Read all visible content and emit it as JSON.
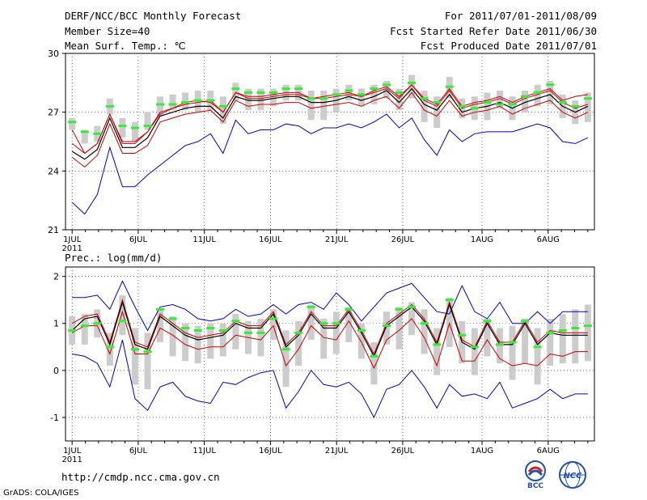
{
  "header": {
    "title": "DERF/NCC/BCC Monthly Forecast",
    "member_size": "Member Size=40",
    "variable": "Mean Surf. Temp.: ℃",
    "period": "For 2011/07/01-2011/08/09",
    "start_date": "Fcst Started Refer Date 2011/06/30",
    "produced_date": "Fcst Produced Date 2011/07/01"
  },
  "footer": {
    "url": "http://cmdp.ncc.cma.gov.cn",
    "grads": "GrADS: COLA/IGES",
    "logo_left": "BCC",
    "logo_right": "NCC"
  },
  "colors": {
    "max_min": "#0000cc",
    "spread": "#cc0000",
    "mean": "#000000",
    "median": "#33ee33",
    "box": "#cccccc",
    "grid": "#555555"
  },
  "chart_data": [
    {
      "type": "line",
      "title": "Mean Surf. Temp.: ℃",
      "x_labels": [
        "1JUL",
        "6JUL",
        "11JUL",
        "16JUL",
        "21JUL",
        "26JUL",
        "1AUG",
        "6AUG"
      ],
      "x_label_days": [
        1,
        6,
        11,
        16,
        21,
        26,
        32,
        37
      ],
      "year_label": "2011",
      "xlim": [
        0.5,
        40.5
      ],
      "ylim": [
        21,
        30
      ],
      "yticks": [
        21,
        24,
        27,
        30
      ],
      "series": [
        {
          "name": "max",
          "values": [
            22.4,
            21.8,
            22.8,
            25.2,
            23.2,
            23.2,
            23.8,
            24.3,
            24.8,
            25.3,
            25.5,
            25.9,
            24.9,
            26.6,
            25.9,
            26.1,
            26.1,
            26.4,
            26.3,
            25.9,
            26.2,
            26.2,
            26.4,
            26.2,
            26.5,
            26.9,
            26.2,
            26.7,
            25.6,
            24.8,
            26.1,
            25.5,
            25.9,
            26.0,
            26.0,
            26.0,
            26.2,
            26.4,
            26.2,
            25.5,
            25.4,
            25.7
          ]
        },
        {
          "name": "spread_upper",
          "values": [
            25.4,
            24.9,
            25.4,
            26.9,
            25.5,
            25.5,
            26.0,
            26.9,
            27.2,
            27.5,
            27.6,
            27.5,
            27.0,
            28.0,
            27.7,
            27.7,
            27.8,
            27.9,
            27.9,
            27.7,
            27.7,
            27.8,
            27.9,
            27.8,
            28.0,
            28.2,
            27.7,
            28.4,
            27.6,
            27.3,
            28.1,
            27.2,
            27.4,
            27.5,
            27.7,
            27.4,
            27.7,
            27.9,
            28.1,
            27.5,
            27.2,
            27.4
          ]
        },
        {
          "name": "median_line",
          "values": [
            26.1,
            24.9,
            25.4,
            26.9,
            25.4,
            25.4,
            26.0,
            27.0,
            27.2,
            27.4,
            27.5,
            27.6,
            27.0,
            28.0,
            27.8,
            27.8,
            27.9,
            28.0,
            28.0,
            27.7,
            27.8,
            27.9,
            28.0,
            27.8,
            28.1,
            28.3,
            27.8,
            28.4,
            27.7,
            27.4,
            28.2,
            27.3,
            27.5,
            27.6,
            27.8,
            27.5,
            27.8,
            28.0,
            28.2,
            27.6,
            27.8,
            27.9
          ]
        },
        {
          "name": "mean",
          "values": [
            25.0,
            24.6,
            25.1,
            26.7,
            25.2,
            25.2,
            25.7,
            26.8,
            27.0,
            27.2,
            27.3,
            27.3,
            26.7,
            27.8,
            27.6,
            27.6,
            27.7,
            27.8,
            27.8,
            27.5,
            27.5,
            27.6,
            27.8,
            27.6,
            27.8,
            28.1,
            27.5,
            28.2,
            27.4,
            27.1,
            27.9,
            27.0,
            27.2,
            27.3,
            27.5,
            27.2,
            27.5,
            27.7,
            27.9,
            27.3,
            27.0,
            27.3
          ]
        },
        {
          "name": "spread_lower",
          "values": [
            24.7,
            24.2,
            24.8,
            26.4,
            24.9,
            24.9,
            25.3,
            26.5,
            26.7,
            26.9,
            27.0,
            27.1,
            26.5,
            27.6,
            27.3,
            27.4,
            27.4,
            27.5,
            27.5,
            27.2,
            27.3,
            27.4,
            27.5,
            27.3,
            27.6,
            27.8,
            27.2,
            28.0,
            27.1,
            26.8,
            27.6,
            26.8,
            27.0,
            27.1,
            27.3,
            26.9,
            27.2,
            27.4,
            27.6,
            27.0,
            26.7,
            27.0
          ]
        },
        {
          "name": "ens_max",
          "values": [
            27.0,
            26.2,
            26.9,
            27.9,
            26.9,
            27.0,
            27.7,
            28.3,
            28.4,
            28.6,
            28.6,
            28.3,
            28.3,
            28.9,
            28.3,
            28.3,
            28.3,
            28.5,
            28.6,
            28.3,
            28.3,
            28.3,
            28.6,
            28.3,
            28.4,
            28.7,
            28.3,
            28.9,
            28.3,
            28.0,
            29.0,
            28.1,
            28.3,
            28.6,
            28.7,
            28.3,
            28.6,
            28.7,
            28.8,
            28.3,
            28.1,
            28.4
          ]
        },
        {
          "name": "ens_min_env",
          "values": [
            26.8,
            26.1,
            26.6,
            27.8,
            26.8,
            26.8,
            27.4,
            28.3,
            28.4,
            28.6,
            28.6,
            28.4,
            28.4,
            28.9,
            28.4,
            28.4,
            28.4,
            28.6,
            28.6,
            28.3,
            28.3,
            28.4,
            28.6,
            28.4,
            28.5,
            28.8,
            28.3,
            29.0,
            28.3,
            27.9,
            29.0,
            28.0,
            28.2,
            28.6,
            28.7,
            28.3,
            28.6,
            28.8,
            28.9,
            28.3,
            28.0,
            28.3
          ]
        }
      ],
      "box_high": [
        26.7,
        26.1,
        26.3,
        27.7,
        26.7,
        26.5,
        27.0,
        27.8,
        27.9,
        28.0,
        28.1,
        28.1,
        27.8,
        28.5,
        28.2,
        28.2,
        28.2,
        28.4,
        28.4,
        28.1,
        28.1,
        28.2,
        28.4,
        28.2,
        28.4,
        28.6,
        28.2,
        28.9,
        28.1,
        27.8,
        28.8,
        27.7,
        27.8,
        28.0,
        28.1,
        27.8,
        28.1,
        28.4,
        28.6,
        27.9,
        27.6,
        28.0
      ],
      "box_low": [
        26.1,
        25.4,
        25.5,
        26.9,
        25.7,
        25.5,
        26.1,
        26.8,
        27.1,
        27.1,
        27.0,
        27.1,
        26.4,
        27.6,
        27.1,
        27.1,
        27.3,
        27.6,
        27.6,
        26.6,
        26.6,
        27.0,
        27.6,
        27.3,
        27.4,
        27.7,
        27.1,
        27.7,
        26.5,
        26.2,
        27.7,
        26.7,
        26.6,
        26.6,
        27.2,
        26.6,
        27.0,
        27.3,
        27.4,
        26.7,
        26.4,
        26.5
      ],
      "median_marks": [
        26.5,
        26.0,
        25.9,
        27.3,
        26.3,
        26.2,
        26.3,
        27.4,
        27.4,
        27.5,
        27.6,
        27.6,
        27.3,
        28.2,
        28.0,
        28.0,
        28.0,
        28.2,
        28.2,
        27.7,
        27.7,
        27.9,
        28.1,
        27.9,
        28.2,
        28.4,
        28.0,
        28.5,
        27.7,
        27.5,
        28.3,
        27.3,
        27.2,
        27.5,
        27.4,
        27.4,
        27.8,
        28.0,
        28.4,
        27.5,
        27.3,
        27.7
      ]
    },
    {
      "type": "line",
      "title": "Prec.: log(mm/d)",
      "x_labels": [
        "1JUL",
        "6JUL",
        "11JUL",
        "16JUL",
        "21JUL",
        "26JUL",
        "1AUG",
        "6AUG"
      ],
      "x_label_days": [
        1,
        6,
        11,
        16,
        21,
        26,
        32,
        37
      ],
      "year_label": "2011",
      "xlim": [
        0.5,
        40.5
      ],
      "ylim": [
        -1.5,
        2.2
      ],
      "yticks": [
        -1,
        0,
        1,
        2
      ],
      "series": [
        {
          "name": "max",
          "values": [
            1.55,
            1.55,
            1.6,
            1.3,
            1.9,
            1.35,
            0.85,
            1.35,
            1.4,
            1.3,
            1.1,
            1.05,
            1.1,
            1.3,
            1.15,
            1.2,
            1.4,
            1.2,
            1.4,
            1.45,
            1.3,
            1.65,
            1.4,
            1.05,
            1.35,
            1.65,
            1.75,
            1.85,
            1.55,
            1.25,
            1.2,
            1.8,
            1.25,
            1.1,
            1.45,
            1.0,
            1.0,
            1.25,
            1.0,
            1.25,
            1.25,
            1.25
          ]
        },
        {
          "name": "spread_upper",
          "values": [
            1.0,
            1.15,
            1.2,
            0.6,
            1.5,
            0.6,
            0.5,
            1.2,
            1.0,
            0.8,
            0.7,
            0.75,
            0.8,
            1.05,
            0.95,
            0.95,
            1.25,
            0.55,
            0.8,
            1.25,
            0.95,
            0.95,
            1.3,
            0.85,
            0.35,
            1.0,
            1.2,
            1.4,
            1.1,
            0.6,
            1.45,
            0.65,
            0.5,
            1.05,
            0.6,
            0.6,
            1.05,
            0.6,
            0.85,
            0.8,
            0.8,
            0.8
          ]
        },
        {
          "name": "mean",
          "values": [
            0.85,
            1.1,
            1.15,
            0.55,
            1.45,
            0.55,
            0.45,
            1.15,
            0.95,
            0.75,
            0.65,
            0.7,
            0.75,
            1.0,
            0.9,
            0.9,
            1.2,
            0.5,
            0.75,
            1.2,
            0.9,
            0.9,
            1.25,
            0.8,
            0.3,
            0.95,
            1.15,
            1.35,
            1.05,
            0.55,
            1.4,
            0.6,
            0.45,
            1.0,
            0.55,
            0.55,
            1.0,
            0.55,
            0.8,
            0.75,
            0.75,
            0.75
          ]
        },
        {
          "name": "spread_lower",
          "values": [
            0.8,
            0.95,
            0.95,
            0.35,
            1.25,
            0.35,
            0.35,
            0.9,
            0.75,
            0.55,
            0.45,
            0.5,
            0.5,
            0.75,
            0.7,
            0.65,
            0.95,
            0.1,
            0.45,
            0.95,
            0.7,
            0.65,
            1.05,
            0.6,
            0.05,
            0.65,
            0.85,
            1.1,
            0.7,
            0.1,
            1.0,
            0.2,
            0.2,
            0.65,
            0.25,
            0.1,
            0.15,
            0.1,
            0.35,
            0.3,
            0.4,
            0.4
          ]
        },
        {
          "name": "min",
          "values": [
            0.35,
            0.3,
            0.15,
            -0.35,
            0.65,
            -0.6,
            -0.85,
            -0.35,
            -0.25,
            -0.55,
            -0.65,
            -0.7,
            -0.25,
            -0.3,
            -0.15,
            -0.05,
            0.0,
            -0.8,
            -0.45,
            0.0,
            -0.3,
            -0.35,
            -0.25,
            -0.5,
            -1.0,
            -0.4,
            -0.3,
            0.0,
            -0.35,
            -0.8,
            -0.3,
            -0.55,
            -0.5,
            -0.6,
            -0.25,
            -0.8,
            -0.7,
            -0.6,
            -0.4,
            -0.6,
            -0.5,
            -0.5
          ]
        }
      ],
      "box_high": [
        1.15,
        1.2,
        1.3,
        0.8,
        1.6,
        0.9,
        0.8,
        1.3,
        1.15,
        1.0,
        0.95,
        1.0,
        1.0,
        1.2,
        1.05,
        1.1,
        1.3,
        0.85,
        1.05,
        1.4,
        1.1,
        1.25,
        1.35,
        1.0,
        0.6,
        1.25,
        1.35,
        1.45,
        1.3,
        0.9,
        1.55,
        1.05,
        0.9,
        1.1,
        0.9,
        0.95,
        1.1,
        0.9,
        1.1,
        1.2,
        1.3,
        1.4
      ],
      "box_low": [
        0.55,
        0.55,
        0.7,
        0.1,
        0.75,
        -0.3,
        -0.4,
        0.6,
        0.3,
        0.2,
        0.15,
        0.25,
        0.3,
        0.45,
        0.35,
        0.3,
        0.65,
        -0.35,
        0.1,
        0.65,
        0.25,
        0.35,
        0.6,
        0.25,
        -0.3,
        0.55,
        0.45,
        0.75,
        0.35,
        -0.1,
        0.5,
        0.15,
        -0.1,
        0.3,
        0.15,
        -0.2,
        0.15,
        -0.3,
        0.1,
        0.15,
        0.15,
        0.2
      ],
      "median_marks": [
        0.85,
        0.95,
        1.0,
        0.5,
        1.05,
        0.45,
        0.4,
        1.3,
        1.1,
        0.9,
        0.85,
        0.9,
        0.85,
        1.05,
        0.8,
        0.8,
        1.1,
        0.45,
        0.8,
        1.35,
        1.0,
        1.0,
        1.3,
        0.85,
        0.3,
        0.95,
        1.3,
        1.35,
        1.0,
        0.55,
        1.5,
        0.75,
        0.5,
        1.05,
        0.55,
        0.6,
        1.05,
        0.5,
        0.8,
        0.85,
        0.9,
        0.95
      ]
    }
  ]
}
